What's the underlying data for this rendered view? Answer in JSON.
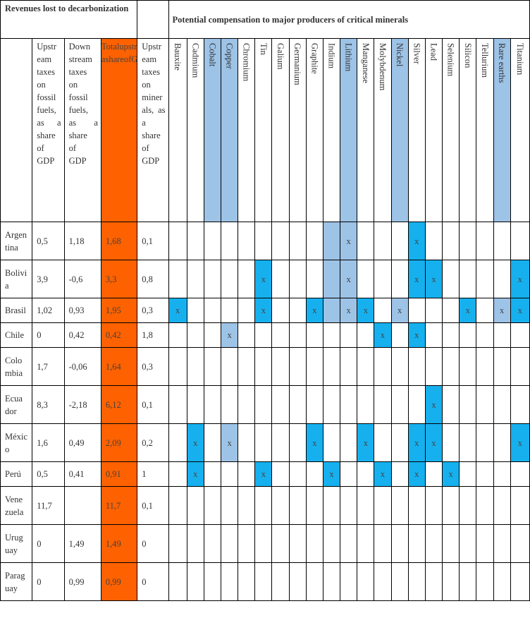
{
  "header": {
    "revenues_title": "Revenues lost to decarbonization",
    "compensation_title": "Potential compensation to major producers of critical minerals"
  },
  "columns": {
    "upstream_fuels": [
      "Upstr",
      "eam",
      "taxes",
      "on",
      "fossil",
      "fuels,",
      "as a",
      "share",
      "of",
      "GDP"
    ],
    "downstream_fuels": [
      "Down",
      "stream",
      "taxes",
      "on",
      "fossil",
      "fuels,",
      "as a",
      "share",
      "of",
      "GDP"
    ],
    "total": [
      "Total",
      "upstre",
      "am",
      "and",
      "downs",
      "tream",
      "taxes",
      "on",
      "fuels,",
      "as a",
      "share",
      "of",
      "GDP"
    ],
    "upstream_minerals": [
      "Upstr",
      "eam",
      "taxes",
      "on",
      "miner",
      "als, as",
      "a",
      "share",
      "of",
      "GDP"
    ]
  },
  "minerals": [
    "Bauxite",
    "Cadmium",
    "Cobalt",
    "Copper",
    "Chromium",
    "Tin",
    "Galium",
    "Germanium",
    "Graphite",
    "Indium",
    "Lithium",
    "Manganese",
    "Molybdenum",
    "Nickel",
    "Silver",
    "Lead",
    "Selenium",
    "Silicon",
    "Tellurium",
    "Rare earths",
    "Titanium"
  ],
  "highlighted_minerals": [
    "Cobalt",
    "Copper",
    "Lithium",
    "Nickel",
    "Rare earths"
  ],
  "mark_symbol": "x",
  "colors": {
    "total_highlight": "#fd6100",
    "critical_mineral_column": "#9dc3e6",
    "producer_mark": "#16b0ee"
  },
  "rows": [
    {
      "country": [
        "Argen",
        "tina"
      ],
      "upstream_fuels": "0,5",
      "downstream_fuels": "1,18",
      "total": "1,68",
      "upstream_minerals": "0,1",
      "marks": {
        "Lithium": "pale",
        "Silver": "bright"
      },
      "shaded": [
        "Indium"
      ]
    },
    {
      "country": [
        "Bolivi",
        "a"
      ],
      "upstream_fuels": "3,9",
      "downstream_fuels": "-0,6",
      "total": "3,3",
      "upstream_minerals": "0,8",
      "marks": {
        "Tin": "bright",
        "Lithium": "pale",
        "Silver": "bright",
        "Lead": "bright",
        "Titanium": "bright"
      },
      "shaded": [
        "Indium"
      ]
    },
    {
      "country": [
        "Brasil"
      ],
      "upstream_fuels": "1,02",
      "downstream_fuels": "0,93",
      "total": "1,95",
      "upstream_minerals": "0,3",
      "marks": {
        "Bauxite": "bright",
        "Tin": "bright",
        "Graphite": "bright",
        "Lithium": "pale",
        "Manganese": "bright",
        "Nickel": "pale",
        "Silicon": "bright",
        "Rare earths": "pale",
        "Titanium": "bright"
      },
      "shaded": [
        "Indium"
      ]
    },
    {
      "country": [
        "Chile"
      ],
      "upstream_fuels": "0",
      "downstream_fuels": "0,42",
      "total": "0,42",
      "upstream_minerals": "1,8",
      "marks": {
        "Copper": "pale",
        "Molybdenum": "bright",
        "Silver": "bright"
      },
      "shaded": []
    },
    {
      "country": [
        "Colo",
        "mbia"
      ],
      "upstream_fuels": "1,7",
      "downstream_fuels": "-0,06",
      "total": "1,64",
      "upstream_minerals": "0,3",
      "marks": {},
      "shaded": []
    },
    {
      "country": [
        "Ecua",
        "dor"
      ],
      "upstream_fuels": "8,3",
      "downstream_fuels": "-2,18",
      "total": "6,12",
      "upstream_minerals": "0,1",
      "marks": {
        "Lead": "bright"
      },
      "shaded": []
    },
    {
      "country": [
        "Méxic",
        "o"
      ],
      "upstream_fuels": "1,6",
      "downstream_fuels": "0,49",
      "total": "2,09",
      "upstream_minerals": "0,2",
      "marks": {
        "Cadmium": "bright",
        "Copper": "pale",
        "Graphite": "bright",
        "Manganese": "bright",
        "Silver": "bright",
        "Lead": "bright",
        "Titanium": "bright"
      },
      "shaded": []
    },
    {
      "country": [
        "Perú"
      ],
      "upstream_fuels": "0,5",
      "downstream_fuels": "0,41",
      "total": "0,91",
      "upstream_minerals": "1",
      "marks": {
        "Cadmium": "bright",
        "Tin": "bright",
        "Indium": "bright",
        "Molybdenum": "bright",
        "Silver": "bright",
        "Selenium": "bright"
      },
      "shaded": []
    },
    {
      "country": [
        "Vene",
        "zuela"
      ],
      "upstream_fuels": "11,7",
      "downstream_fuels": "",
      "total": "11,7",
      "upstream_minerals": "0,1",
      "marks": {},
      "shaded": []
    },
    {
      "country": [
        "Urug",
        "uay"
      ],
      "upstream_fuels": "0",
      "downstream_fuels": "1,49",
      "total": "1,49",
      "upstream_minerals": "0",
      "marks": {},
      "shaded": []
    },
    {
      "country": [
        "Parag",
        "uay"
      ],
      "upstream_fuels": "0",
      "downstream_fuels": "0,99",
      "total": "0,99",
      "upstream_minerals": "0",
      "marks": {},
      "shaded": []
    }
  ]
}
